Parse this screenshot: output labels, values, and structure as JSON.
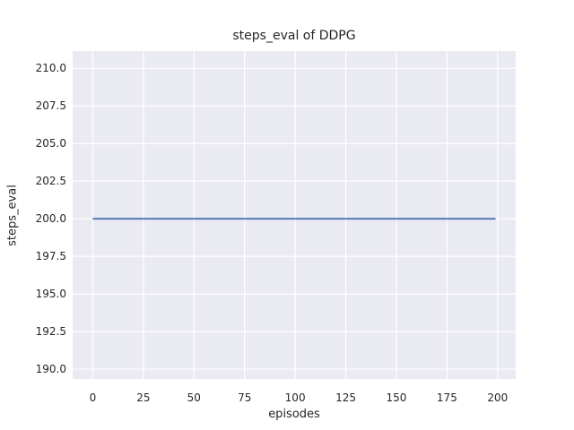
{
  "chart_data": {
    "type": "line",
    "title": "steps_eval of DDPG",
    "xlabel": "episodes",
    "ylabel": "steps_eval",
    "series": [
      {
        "name": "DDPG",
        "color": "#4c72b0",
        "x": [
          0,
          199
        ],
        "y": [
          200,
          200
        ]
      }
    ],
    "xticks": [
      0,
      25,
      50,
      75,
      100,
      125,
      150,
      175,
      200
    ],
    "xtick_labels": [
      "0",
      "25",
      "50",
      "75",
      "100",
      "125",
      "150",
      "175",
      "200"
    ],
    "yticks": [
      190.0,
      192.5,
      195.0,
      197.5,
      200.0,
      202.5,
      205.0,
      207.5,
      210.0
    ],
    "ytick_labels": [
      "190.0",
      "192.5",
      "195.0",
      "197.5",
      "200.0",
      "202.5",
      "205.0",
      "207.5",
      "210.0"
    ],
    "xlim": [
      -9.95,
      208.95
    ],
    "ylim": [
      189.35,
      211.15
    ],
    "grid": true,
    "legend_position": "none",
    "style": {
      "figure_background": "#ffffff",
      "axes_background": "#eaeaf2",
      "grid_color": "#ffffff",
      "grid_linewidth": 1.2,
      "line_width": 1.8,
      "text_color": "#262626"
    }
  }
}
